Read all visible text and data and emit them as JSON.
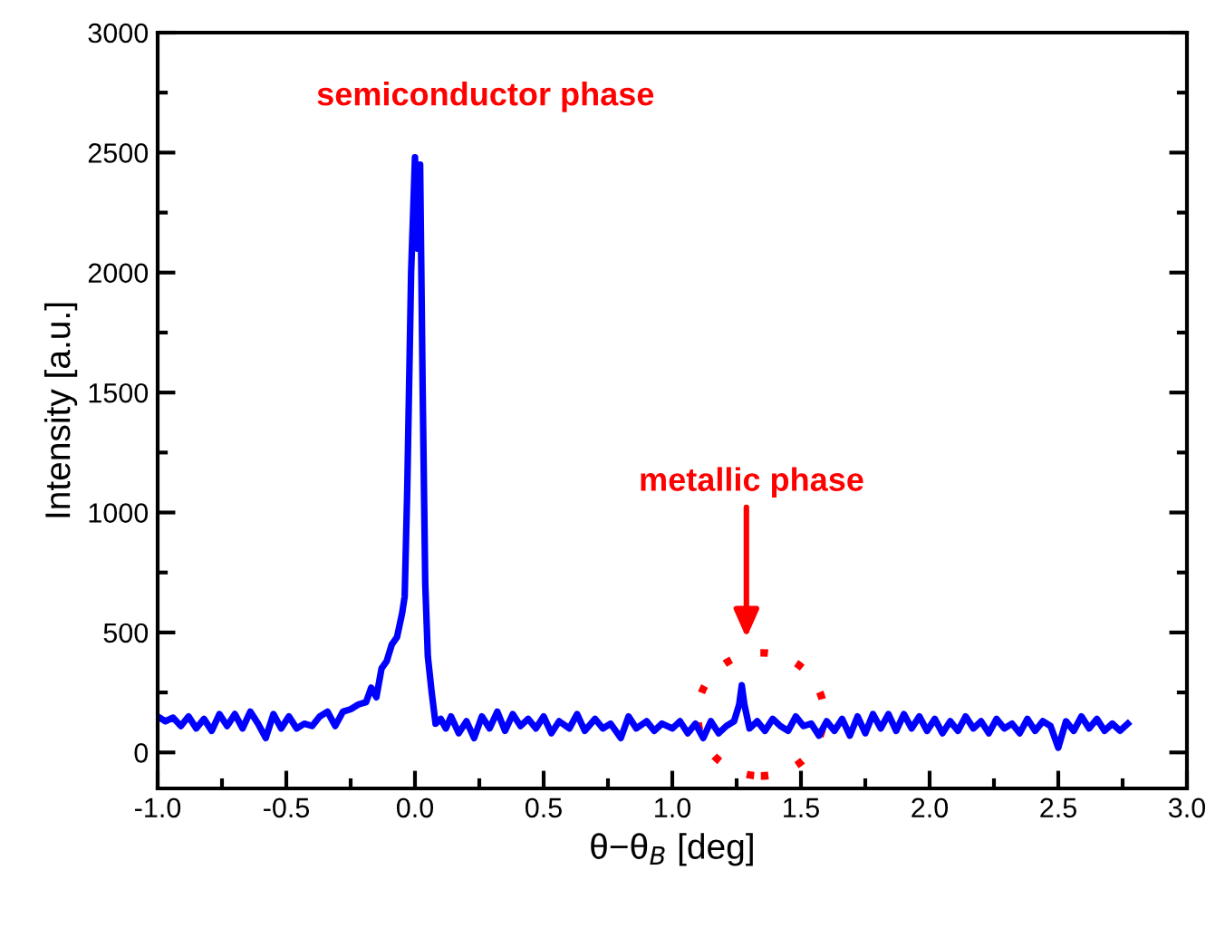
{
  "chart_data": {
    "type": "line",
    "xlabel": "θ−θ$_{B}$ [deg]",
    "ylabel": "Intensity [a.u.]",
    "xlim": [
      -1.0,
      3.0
    ],
    "ylim": [
      -150,
      3000
    ],
    "xticks": [
      {
        "value": -1.0,
        "label": "-1.0"
      },
      {
        "value": -0.75,
        "label": null
      },
      {
        "value": -0.5,
        "label": "-0.5"
      },
      {
        "value": -0.25,
        "label": null
      },
      {
        "value": 0.0,
        "label": "0.0"
      },
      {
        "value": 0.25,
        "label": null
      },
      {
        "value": 0.5,
        "label": "0.5"
      },
      {
        "value": 0.75,
        "label": null
      },
      {
        "value": 1.0,
        "label": "1.0"
      },
      {
        "value": 1.25,
        "label": null
      },
      {
        "value": 1.5,
        "label": "1.5"
      },
      {
        "value": 1.75,
        "label": null
      },
      {
        "value": 2.0,
        "label": "2.0"
      },
      {
        "value": 2.25,
        "label": null
      },
      {
        "value": 2.5,
        "label": "2.5"
      },
      {
        "value": 2.75,
        "label": null
      },
      {
        "value": 3.0,
        "label": "3.0"
      }
    ],
    "yticks": [
      0,
      {
        "value": 250,
        "label": null
      },
      500,
      {
        "value": 750,
        "label": null
      },
      1000,
      {
        "value": 1250,
        "label": null
      },
      1500,
      {
        "value": 1750,
        "label": null
      },
      2000,
      {
        "value": 2250,
        "label": null
      },
      2500,
      {
        "value": 2750,
        "label": null
      },
      3000
    ],
    "grid": false,
    "legend": false,
    "marker": "none",
    "line_style": "solid",
    "annotations": [
      {
        "text": "semiconductor phase",
        "x": 0.0,
        "y": 2480
      },
      "metallic phase"
    ],
    "series": [
      {
        "color": "#0000ff",
        "x": [
          -1.0,
          -0.97,
          -0.94,
          -0.91,
          -0.88,
          -0.85,
          -0.82,
          -0.79,
          -0.76,
          -0.73,
          -0.7,
          -0.67,
          -0.64,
          -0.61,
          -0.58,
          -0.55,
          -0.52,
          -0.49,
          -0.46,
          -0.43,
          -0.4,
          -0.37,
          -0.34,
          -0.31,
          -0.28,
          -0.25,
          -0.22,
          -0.19,
          -0.17,
          -0.15,
          -0.13,
          -0.11,
          -0.09,
          -0.07,
          -0.05,
          -0.04,
          -0.03,
          -0.015,
          0.0,
          0.01,
          0.02,
          0.03,
          0.04,
          0.05,
          0.065,
          0.08,
          0.1,
          0.12,
          0.14,
          0.17,
          0.2,
          0.23,
          0.26,
          0.29,
          0.32,
          0.35,
          0.38,
          0.41,
          0.44,
          0.47,
          0.5,
          0.53,
          0.56,
          0.6,
          0.63,
          0.66,
          0.7,
          0.73,
          0.76,
          0.8,
          0.83,
          0.86,
          0.9,
          0.93,
          0.96,
          1.0,
          1.03,
          1.06,
          1.09,
          1.12,
          1.15,
          1.18,
          1.21,
          1.24,
          1.26,
          1.27,
          1.28,
          1.3,
          1.33,
          1.36,
          1.39,
          1.42,
          1.45,
          1.48,
          1.51,
          1.54,
          1.57,
          1.6,
          1.63,
          1.66,
          1.69,
          1.72,
          1.75,
          1.78,
          1.81,
          1.84,
          1.87,
          1.9,
          1.93,
          1.96,
          1.99,
          2.02,
          2.05,
          2.08,
          2.11,
          2.14,
          2.17,
          2.2,
          2.23,
          2.26,
          2.29,
          2.32,
          2.35,
          2.38,
          2.41,
          2.44,
          2.47,
          2.5,
          2.53,
          2.56,
          2.59,
          2.62,
          2.65,
          2.68,
          2.71,
          2.74,
          2.77
        ],
        "values": [
          150,
          130,
          145,
          110,
          150,
          100,
          140,
          90,
          160,
          110,
          160,
          100,
          170,
          120,
          60,
          160,
          100,
          150,
          100,
          120,
          110,
          150,
          170,
          110,
          170,
          180,
          200,
          210,
          270,
          230,
          350,
          380,
          450,
          480,
          580,
          650,
          1100,
          2000,
          2480,
          2100,
          2450,
          1500,
          700,
          400,
          250,
          120,
          140,
          100,
          150,
          80,
          130,
          60,
          150,
          100,
          170,
          90,
          160,
          110,
          140,
          100,
          150,
          80,
          130,
          100,
          160,
          90,
          140,
          100,
          120,
          60,
          150,
          100,
          130,
          90,
          120,
          100,
          130,
          80,
          120,
          60,
          130,
          80,
          110,
          130,
          200,
          280,
          200,
          100,
          130,
          90,
          140,
          110,
          90,
          150,
          110,
          120,
          70,
          130,
          90,
          140,
          70,
          150,
          80,
          160,
          100,
          160,
          90,
          160,
          100,
          150,
          90,
          140,
          80,
          130,
          90,
          150,
          100,
          130,
          80,
          140,
          100,
          120,
          80,
          140,
          90,
          130,
          110,
          20,
          130,
          90,
          150,
          100,
          140,
          90,
          120,
          90,
          120
        ]
      }
    ]
  }
}
